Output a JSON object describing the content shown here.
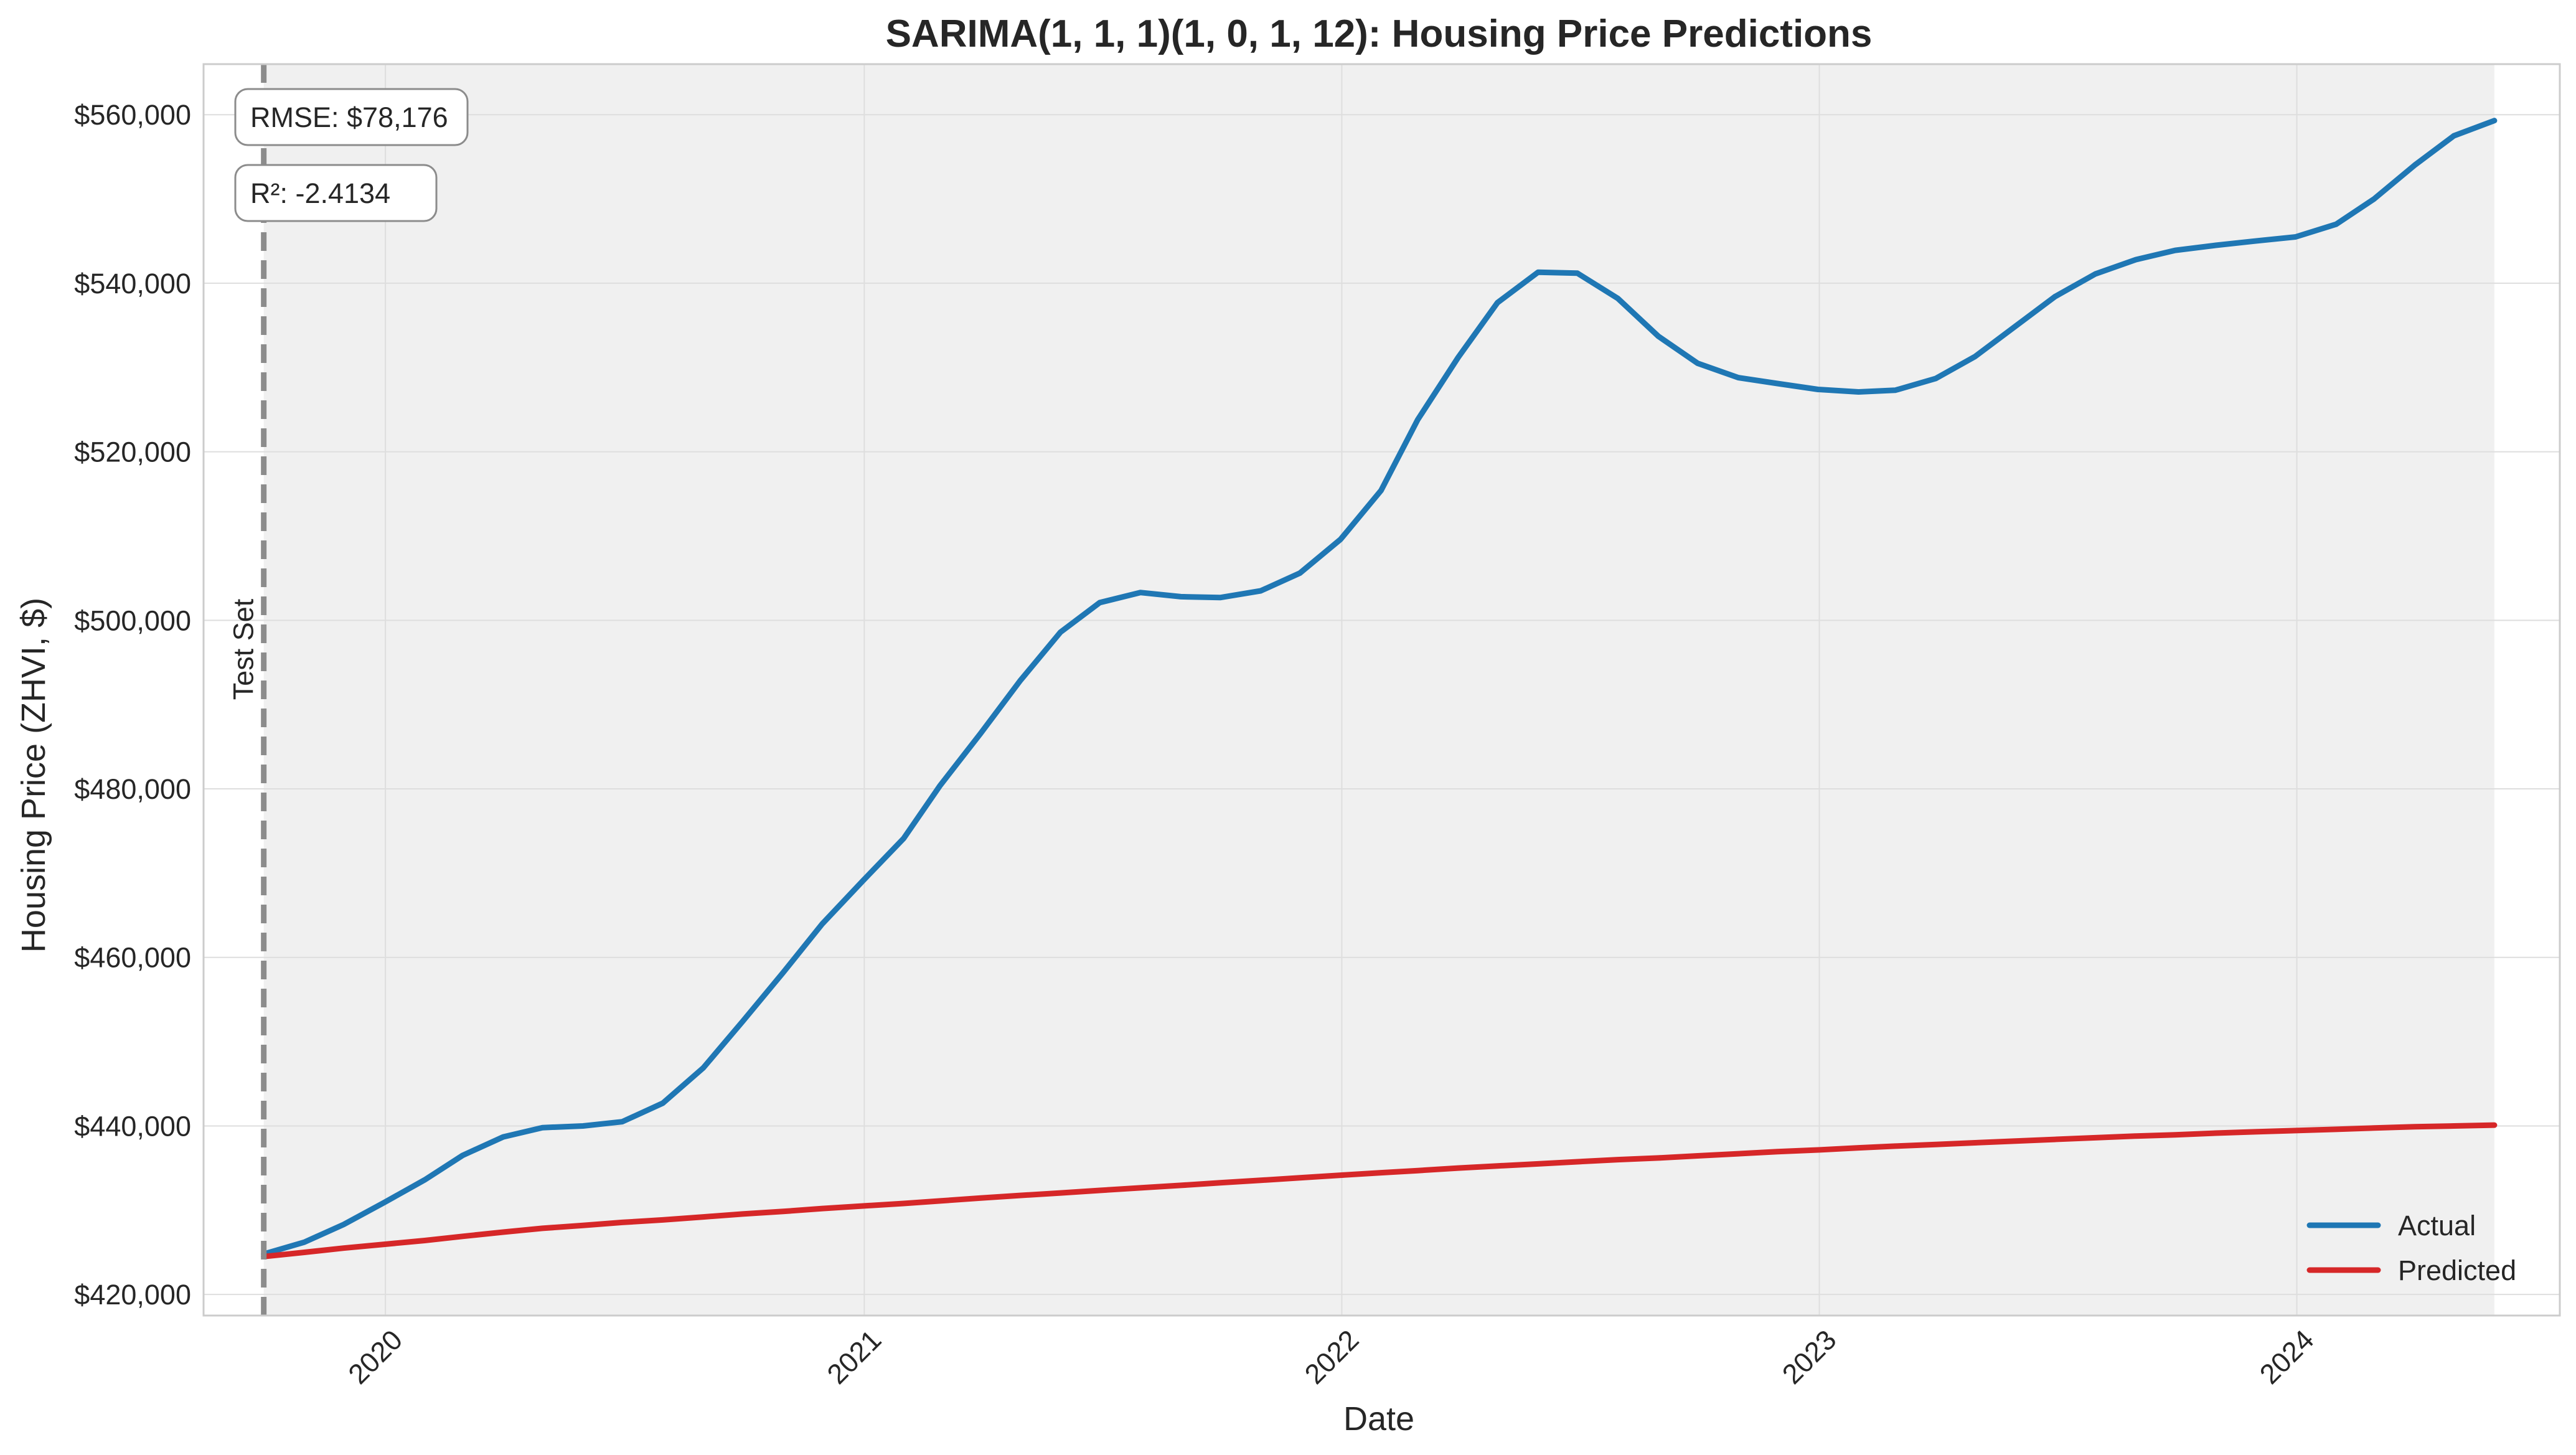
{
  "chart_data": {
    "type": "line",
    "title": "SARIMA(1, 1, 1)(1, 0, 1, 12): Housing Price Predictions",
    "xlabel": "Date",
    "ylabel": "Housing Price (ZHVI, $)",
    "xlim": [
      "2019-08-15",
      "2024-07-20"
    ],
    "ylim": [
      417500,
      566000
    ],
    "x_ticks": [
      "2020",
      "2021",
      "2022",
      "2023",
      "2024"
    ],
    "y_ticks": [
      "$420,000",
      "$440,000",
      "$460,000",
      "$480,000",
      "$500,000",
      "$520,000",
      "$540,000",
      "$560,000"
    ],
    "grid": true,
    "legend_position": "bottom-right",
    "test_start": "2019-09-30",
    "test_label": "Test Set",
    "metrics": [
      "RMSE: $78,176",
      "R²: -2.4134"
    ],
    "x": [
      "2019-09-30",
      "2019-10-31",
      "2019-11-30",
      "2019-12-31",
      "2020-01-31",
      "2020-02-29",
      "2020-03-31",
      "2020-04-30",
      "2020-05-31",
      "2020-06-30",
      "2020-07-31",
      "2020-08-31",
      "2020-09-30",
      "2020-10-31",
      "2020-11-30",
      "2020-12-31",
      "2021-01-31",
      "2021-02-28",
      "2021-03-31",
      "2021-04-30",
      "2021-05-31",
      "2021-06-30",
      "2021-07-31",
      "2021-08-31",
      "2021-09-30",
      "2021-10-31",
      "2021-11-30",
      "2021-12-31",
      "2022-01-31",
      "2022-02-28",
      "2022-03-31",
      "2022-04-30",
      "2022-05-31",
      "2022-06-30",
      "2022-07-31",
      "2022-08-31",
      "2022-09-30",
      "2022-10-31",
      "2022-11-30",
      "2022-12-31",
      "2023-01-31",
      "2023-02-28",
      "2023-03-31",
      "2023-04-30",
      "2023-05-31",
      "2023-06-30",
      "2023-07-31",
      "2023-08-31",
      "2023-09-30",
      "2023-10-31",
      "2023-11-30",
      "2023-12-31",
      "2024-01-31",
      "2024-02-29",
      "2024-03-31",
      "2024-04-30",
      "2024-05-31"
    ],
    "series": [
      {
        "name": "Actual",
        "color": "#1f77b4",
        "values": [
          424800,
          426200,
          428300,
          430900,
          433600,
          436500,
          438700,
          439800,
          440000,
          440500,
          442700,
          446900,
          452400,
          458200,
          464000,
          469100,
          474100,
          480400,
          486600,
          492800,
          498600,
          502100,
          503300,
          502800,
          502700,
          503500,
          505600,
          509600,
          515400,
          523800,
          531200,
          537700,
          541300,
          541200,
          538200,
          533700,
          530500,
          528800,
          528100,
          527400,
          527100,
          527300,
          528700,
          531300,
          534900,
          538400,
          541100,
          542800,
          543900,
          544500,
          545000,
          545500,
          547000,
          550000,
          554000,
          557500,
          559300
        ]
      },
      {
        "name": "Predicted",
        "color": "#d62728",
        "values": [
          424500,
          425000,
          425500,
          425950,
          426400,
          426900,
          427400,
          427850,
          428200,
          428550,
          428850,
          429200,
          429550,
          429850,
          430200,
          430500,
          430800,
          431100,
          431450,
          431750,
          432050,
          432350,
          432650,
          432950,
          433250,
          433550,
          433850,
          434150,
          434450,
          434700,
          435000,
          435250,
          435500,
          435750,
          436000,
          436200,
          436450,
          436700,
          436950,
          437150,
          437400,
          437600,
          437800,
          438000,
          438200,
          438400,
          438600,
          438800,
          438950,
          439150,
          439300,
          439450,
          439600,
          439750,
          439900,
          440000,
          440100
        ]
      }
    ]
  }
}
